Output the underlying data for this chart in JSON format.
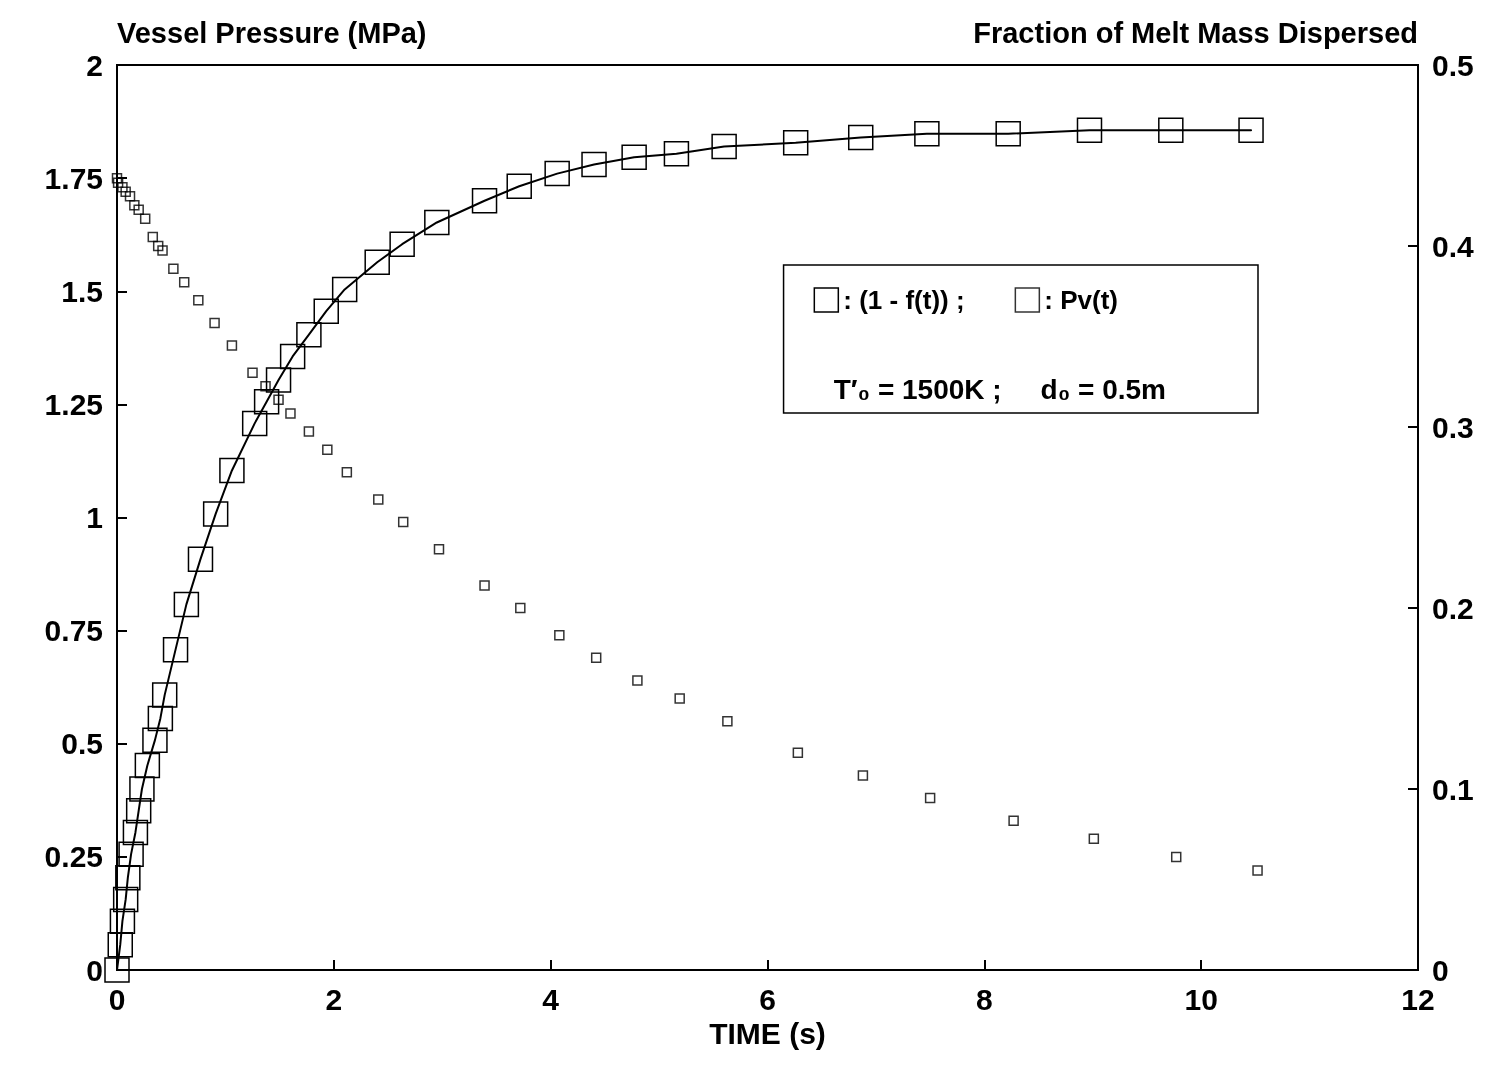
{
  "chart_data": {
    "type": "line",
    "xlabel": "TIME (s)",
    "ylabel": "Vessel Pressure (MPa)",
    "y2label": "Fraction of Melt Mass Dispersed",
    "xlim": [
      0,
      12
    ],
    "xticks": [
      0,
      2,
      4,
      6,
      8,
      10,
      12
    ],
    "ylim": [
      0,
      2
    ],
    "yticks": [
      0,
      0.25,
      0.5,
      0.75,
      1,
      1.25,
      1.5,
      1.75,
      2
    ],
    "y2lim": [
      0,
      0.5
    ],
    "y2ticks": [
      0,
      0.1,
      0.2,
      0.3,
      0.4,
      0.5
    ],
    "grid": false,
    "legend": "top right",
    "annotations": [
      "T′₀ = 1500K ;     d₀ = 0.5m"
    ],
    "series": [
      {
        "name": ": (1 - f(t)) ;",
        "axis": "y2",
        "marker": "square",
        "line_style": "solid",
        "color": "#000000",
        "x": [
          0,
          0.03,
          0.05,
          0.08,
          0.1,
          0.13,
          0.17,
          0.2,
          0.23,
          0.28,
          0.35,
          0.4,
          0.44,
          0.54,
          0.64,
          0.77,
          0.91,
          1.06,
          1.27,
          1.38,
          1.49,
          1.62,
          1.77,
          1.93,
          2.1,
          2.4,
          2.63,
          2.95,
          3.39,
          3.71,
          4.06,
          4.4,
          4.77,
          5.16,
          5.6,
          6.26,
          6.86,
          7.47,
          8.22,
          8.97,
          9.72,
          10.46
        ],
        "values": [
          0,
          0.014,
          0.027,
          0.039,
          0.051,
          0.064,
          0.076,
          0.088,
          0.1,
          0.113,
          0.127,
          0.139,
          0.152,
          0.177,
          0.202,
          0.227,
          0.252,
          0.276,
          0.302,
          0.314,
          0.326,
          0.339,
          0.351,
          0.364,
          0.376,
          0.391,
          0.401,
          0.413,
          0.425,
          0.433,
          0.44,
          0.445,
          0.449,
          0.451,
          0.455,
          0.457,
          0.46,
          0.462,
          0.462,
          0.464,
          0.464,
          0.464
        ]
      },
      {
        "name": ": Pv(t)",
        "type": "scatter",
        "marker": "square",
        "color": "#000000",
        "x": [
          0,
          0.01,
          0.05,
          0.08,
          0.12,
          0.16,
          0.2,
          0.26,
          0.33,
          0.38,
          0.42,
          0.52,
          0.62,
          0.75,
          0.9,
          1.06,
          1.25,
          1.37,
          1.49,
          1.6,
          1.77,
          1.94,
          2.12,
          2.41,
          2.64,
          2.97,
          3.39,
          3.72,
          4.08,
          4.42,
          4.8,
          5.19,
          5.63,
          6.28,
          6.88,
          7.5,
          8.27,
          9.01,
          9.77,
          10.52
        ],
        "values": [
          1.75,
          1.74,
          1.73,
          1.72,
          1.71,
          1.69,
          1.68,
          1.66,
          1.62,
          1.6,
          1.59,
          1.55,
          1.52,
          1.48,
          1.43,
          1.38,
          1.32,
          1.29,
          1.26,
          1.23,
          1.19,
          1.15,
          1.1,
          1.04,
          0.99,
          0.93,
          0.85,
          0.8,
          0.74,
          0.69,
          0.64,
          0.6,
          0.55,
          0.48,
          0.43,
          0.38,
          0.33,
          0.29,
          0.25,
          0.22
        ]
      }
    ]
  }
}
